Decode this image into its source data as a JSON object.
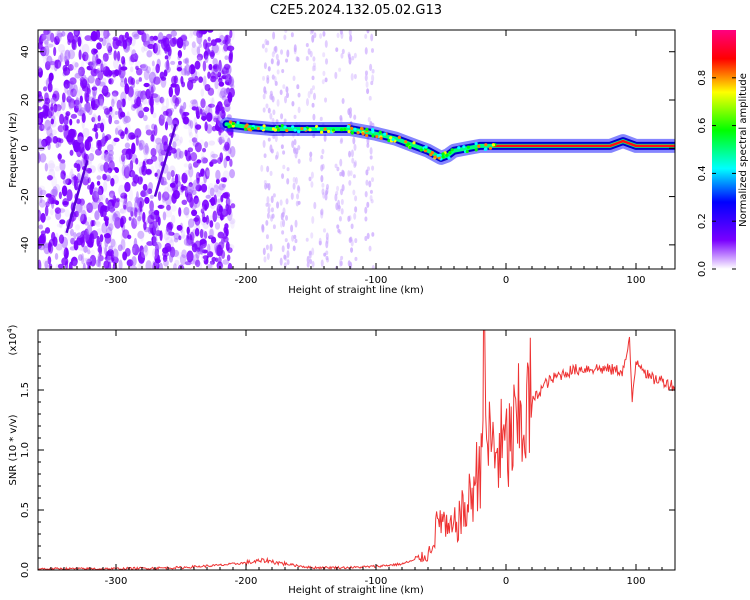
{
  "title": "C2E5.2024.132.05.02.G13",
  "chart_data": [
    {
      "type": "heatmap",
      "name": "spectrogram",
      "xlabel": "Height of straight line (km)",
      "ylabel": "Frequency (Hz)",
      "xlim": [
        -360,
        130
      ],
      "ylim": [
        -50,
        49
      ],
      "x_ticks": [
        -300,
        -200,
        -100,
        0,
        100
      ],
      "y_ticks": [
        -40,
        -20,
        0,
        20,
        40
      ],
      "colorbar": {
        "label": "Normalized spectral amplitude",
        "range": [
          0.0,
          1.0
        ],
        "ticks": [
          0.0,
          0.2,
          0.4,
          0.6,
          0.8
        ],
        "tick_labels": [
          "0.0",
          "0.2",
          "0.4",
          "0.6",
          "0.8"
        ],
        "colors": [
          "#ffffff",
          "#7a00ff",
          "#0000ff",
          "#00ffff",
          "#00ff00",
          "#ffff00",
          "#ff0000",
          "#ff0080"
        ]
      },
      "signal_trace": {
        "x": [
          -215,
          -200,
          -180,
          -160,
          -140,
          -120,
          -100,
          -85,
          -70,
          -60,
          -50,
          -45,
          -40,
          -30,
          -20,
          -10,
          0,
          20,
          40,
          60,
          80,
          90,
          100,
          130
        ],
        "y": [
          10,
          9,
          8,
          8,
          8,
          8,
          6,
          4,
          1,
          -1,
          -4,
          -3,
          -1,
          0,
          1,
          1,
          1,
          1,
          1,
          1,
          1,
          3,
          1,
          1
        ]
      }
    },
    {
      "type": "line",
      "name": "snr",
      "xlabel": "Height of straight line (km)",
      "ylabel": "SNR (10 * v/v)",
      "y_multiplier": "(x10",
      "y_multiplier_exp": "4",
      "xlim": [
        -360,
        130
      ],
      "ylim": [
        0,
        2.0
      ],
      "x_ticks": [
        -300,
        -200,
        -100,
        0,
        100
      ],
      "y_ticks": [
        0.0,
        0.5,
        1.0,
        1.5
      ],
      "y_tick_labels": [
        "0.0",
        "0.5",
        "1.0",
        "1.5"
      ],
      "color": "#ee3333",
      "series": {
        "name": "SNR",
        "x": [
          -360,
          -300,
          -250,
          -220,
          -200,
          -185,
          -175,
          -150,
          -120,
          -100,
          -80,
          -60,
          -55,
          -50,
          -45,
          -40,
          -35,
          -30,
          -25,
          -20,
          -17,
          -15,
          -10,
          0,
          10,
          20,
          30,
          40,
          50,
          60,
          70,
          80,
          90,
          95,
          97,
          100,
          105,
          110,
          120,
          130
        ],
        "y": [
          0.01,
          0.01,
          0.02,
          0.04,
          0.06,
          0.08,
          0.06,
          0.02,
          0.02,
          0.03,
          0.05,
          0.12,
          0.3,
          0.45,
          0.3,
          0.35,
          0.45,
          0.5,
          0.7,
          0.85,
          1.9,
          1.1,
          1.0,
          1.0,
          1.2,
          1.4,
          1.55,
          1.62,
          1.66,
          1.68,
          1.68,
          1.67,
          1.66,
          1.9,
          1.4,
          1.75,
          1.7,
          1.6,
          1.58,
          1.53
        ]
      }
    }
  ]
}
